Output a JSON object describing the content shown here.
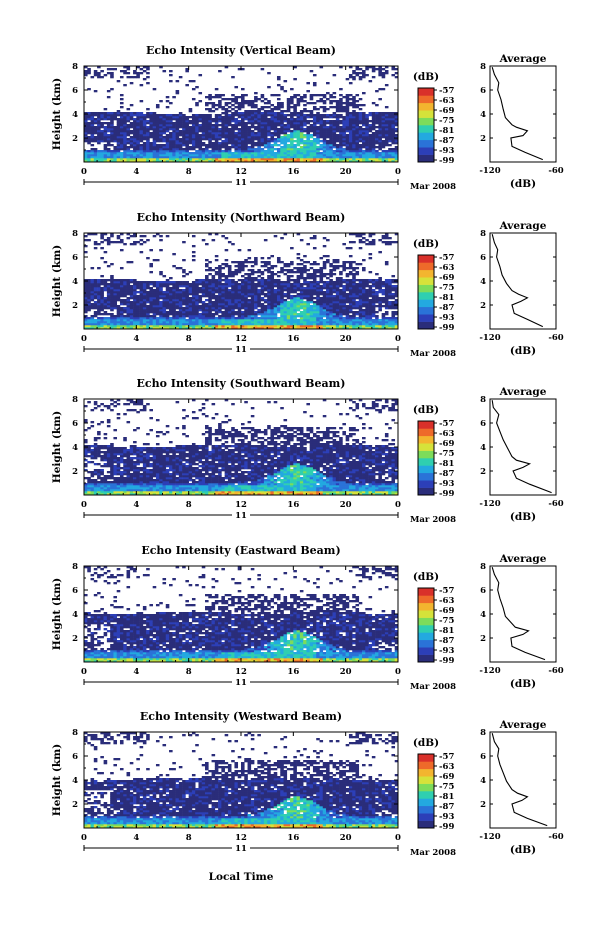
{
  "figure": {
    "bottom_xlabel": "Local Time",
    "date_label": "Mar 2008",
    "day_label": "11"
  },
  "chart_data": [
    {
      "type": "heatmap",
      "title": "Echo Intensity (Vertical Beam)",
      "ylabel": "Height (km)",
      "xlim": [
        0,
        24
      ],
      "ylim": [
        0,
        8
      ],
      "xticks": [
        "0",
        "4",
        "8",
        "12",
        "16",
        "20",
        "0"
      ],
      "yticks": [
        "2",
        "4",
        "6",
        "8"
      ],
      "colorbar": {
        "unit": "(dB)",
        "levels": [
          "-57",
          "-63",
          "-69",
          "-75",
          "-81",
          "-87",
          "-93",
          "-99"
        ]
      },
      "average": {
        "title": "Average",
        "xlabel": "(dB)",
        "xticks": [
          "-120",
          "-60"
        ],
        "yticks": [
          "2",
          "4",
          "6",
          "8"
        ],
        "profile": [
          [
            -72,
            0.2
          ],
          [
            -88,
            0.8
          ],
          [
            -100,
            1.3
          ],
          [
            -101,
            2.0
          ],
          [
            -90,
            2.2
          ],
          [
            -86,
            2.6
          ],
          [
            -96,
            2.9
          ],
          [
            -100,
            3.1
          ],
          [
            -106,
            3.7
          ],
          [
            -108,
            4.4
          ],
          [
            -110,
            5.2
          ],
          [
            -113,
            6.0
          ],
          [
            -112,
            6.6
          ],
          [
            -116,
            7.3
          ],
          [
            -118,
            7.9
          ]
        ]
      }
    },
    {
      "type": "heatmap",
      "title": "Echo Intensity (Northward Beam)",
      "ylabel": "Height (km)",
      "xlim": [
        0,
        24
      ],
      "ylim": [
        0,
        8
      ],
      "xticks": [
        "0",
        "4",
        "8",
        "12",
        "16",
        "20",
        "0"
      ],
      "yticks": [
        "2",
        "4",
        "6",
        "8"
      ],
      "colorbar": {
        "unit": "(dB)",
        "levels": [
          "-57",
          "-63",
          "-69",
          "-75",
          "-81",
          "-87",
          "-93",
          "-99"
        ]
      },
      "average": {
        "title": "Average",
        "xlabel": "(dB)",
        "xticks": [
          "-120",
          "-60"
        ],
        "yticks": [
          "2",
          "4",
          "6",
          "8"
        ],
        "profile": [
          [
            -72,
            0.2
          ],
          [
            -86,
            0.8
          ],
          [
            -98,
            1.3
          ],
          [
            -100,
            2.0
          ],
          [
            -92,
            2.3
          ],
          [
            -86,
            2.6
          ],
          [
            -94,
            2.9
          ],
          [
            -100,
            3.2
          ],
          [
            -105,
            3.8
          ],
          [
            -109,
            4.5
          ],
          [
            -111,
            5.2
          ],
          [
            -114,
            6.0
          ],
          [
            -113,
            6.6
          ],
          [
            -116,
            7.2
          ],
          [
            -118,
            7.9
          ]
        ]
      }
    },
    {
      "type": "heatmap",
      "title": "Echo Intensity (Southward Beam)",
      "ylabel": "Height (km)",
      "xlim": [
        0,
        24
      ],
      "ylim": [
        0,
        8
      ],
      "xticks": [
        "0",
        "4",
        "8",
        "12",
        "16",
        "20",
        "0"
      ],
      "yticks": [
        "2",
        "4",
        "6",
        "8"
      ],
      "colorbar": {
        "unit": "(dB)",
        "levels": [
          "-57",
          "-63",
          "-69",
          "-75",
          "-81",
          "-87",
          "-93",
          "-99"
        ]
      },
      "average": {
        "title": "Average",
        "xlabel": "(dB)",
        "xticks": [
          "-120",
          "-60"
        ],
        "yticks": [
          "2",
          "4",
          "6",
          "8"
        ],
        "profile": [
          [
            -64,
            0.2
          ],
          [
            -84,
            0.9
          ],
          [
            -96,
            1.4
          ],
          [
            -99,
            2.0
          ],
          [
            -90,
            2.3
          ],
          [
            -84,
            2.6
          ],
          [
            -96,
            2.9
          ],
          [
            -100,
            3.2
          ],
          [
            -104,
            3.9
          ],
          [
            -108,
            4.6
          ],
          [
            -111,
            5.3
          ],
          [
            -114,
            6.0
          ],
          [
            -112,
            6.7
          ],
          [
            -117,
            7.3
          ],
          [
            -118,
            7.9
          ]
        ]
      }
    },
    {
      "type": "heatmap",
      "title": "Echo Intensity (Eastward Beam)",
      "ylabel": "Height (km)",
      "xlim": [
        0,
        24
      ],
      "ylim": [
        0,
        8
      ],
      "xticks": [
        "0",
        "4",
        "8",
        "12",
        "16",
        "20",
        "0"
      ],
      "yticks": [
        "2",
        "4",
        "6",
        "8"
      ],
      "colorbar": {
        "unit": "(dB)",
        "levels": [
          "-57",
          "-63",
          "-69",
          "-75",
          "-81",
          "-87",
          "-93",
          "-99"
        ]
      },
      "average": {
        "title": "Average",
        "xlabel": "(dB)",
        "xticks": [
          "-120",
          "-60"
        ],
        "yticks": [
          "2",
          "4",
          "6",
          "8"
        ],
        "profile": [
          [
            -70,
            0.2
          ],
          [
            -88,
            0.8
          ],
          [
            -100,
            1.3
          ],
          [
            -101,
            2.0
          ],
          [
            -90,
            2.3
          ],
          [
            -85,
            2.6
          ],
          [
            -97,
            2.9
          ],
          [
            -100,
            3.2
          ],
          [
            -106,
            3.8
          ],
          [
            -108,
            4.5
          ],
          [
            -111,
            5.3
          ],
          [
            -113,
            6.0
          ],
          [
            -112,
            6.6
          ],
          [
            -116,
            7.3
          ],
          [
            -118,
            7.9
          ]
        ]
      }
    },
    {
      "type": "heatmap",
      "title": "Echo Intensity (Westward Beam)",
      "ylabel": "Height (km)",
      "xlim": [
        0,
        24
      ],
      "ylim": [
        0,
        8
      ],
      "xticks": [
        "0",
        "4",
        "8",
        "12",
        "16",
        "20",
        "0"
      ],
      "yticks": [
        "2",
        "4",
        "6",
        "8"
      ],
      "colorbar": {
        "unit": "(dB)",
        "levels": [
          "-57",
          "-63",
          "-69",
          "-75",
          "-81",
          "-87",
          "-93",
          "-99"
        ]
      },
      "average": {
        "title": "Average",
        "xlabel": "(dB)",
        "xticks": [
          "-120",
          "-60"
        ],
        "yticks": [
          "2",
          "4",
          "6",
          "8"
        ],
        "profile": [
          [
            -68,
            0.2
          ],
          [
            -86,
            0.8
          ],
          [
            -98,
            1.3
          ],
          [
            -100,
            2.0
          ],
          [
            -91,
            2.3
          ],
          [
            -86,
            2.6
          ],
          [
            -95,
            2.9
          ],
          [
            -100,
            3.2
          ],
          [
            -105,
            3.9
          ],
          [
            -108,
            4.6
          ],
          [
            -111,
            5.3
          ],
          [
            -113,
            6.0
          ],
          [
            -112,
            6.6
          ],
          [
            -116,
            7.2
          ],
          [
            -118,
            7.9
          ]
        ]
      }
    }
  ]
}
